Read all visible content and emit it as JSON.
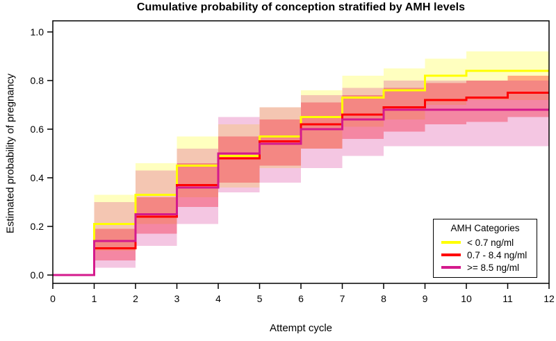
{
  "title": "Cumulative probability of conception stratified by AMH levels",
  "x_axis": {
    "label": "Attempt cycle",
    "ticks": [
      "0",
      "1",
      "2",
      "3",
      "4",
      "5",
      "6",
      "7",
      "8",
      "9",
      "10",
      "11",
      "12"
    ]
  },
  "y_axis": {
    "label": "Estimated probability of pregnancy",
    "ticks": [
      "0.0",
      "0.2",
      "0.4",
      "0.6",
      "0.8",
      "1.0"
    ]
  },
  "legend": {
    "title": "AMH Categories"
  },
  "chart_data": {
    "type": "line",
    "style": "step",
    "title": "Cumulative probability of conception stratified by AMH levels",
    "xlabel": "Attempt cycle",
    "ylabel": "Estimated probability of pregnancy",
    "xlim": [
      0,
      12
    ],
    "ylim": [
      0,
      1.0
    ],
    "grid": false,
    "legend_position": "bottom-right",
    "x": [
      0,
      1,
      2,
      3,
      4,
      5,
      6,
      7,
      8,
      9,
      10,
      11,
      12
    ],
    "series": [
      {
        "name": "< 0.7 ng/ml",
        "color": "#FFFF00",
        "band_color": "rgba(255,255,0,0.25)",
        "values": [
          0,
          0.21,
          0.33,
          0.45,
          0.49,
          0.57,
          0.65,
          0.73,
          0.76,
          0.82,
          0.84,
          0.84,
          0.84
        ],
        "ci_lower": [
          0,
          0.1,
          0.21,
          0.32,
          0.36,
          0.44,
          0.52,
          0.61,
          0.64,
          0.7,
          0.72,
          0.72,
          0.72
        ],
        "ci_upper": [
          0,
          0.33,
          0.46,
          0.57,
          0.62,
          0.69,
          0.76,
          0.82,
          0.85,
          0.89,
          0.92,
          0.92,
          0.92
        ]
      },
      {
        "name": "0.7 - 8.4 ng/ml",
        "color": "#FF0000",
        "band_color": "rgba(255,0,0,0.33)",
        "values": [
          0,
          0.11,
          0.24,
          0.37,
          0.48,
          0.55,
          0.62,
          0.66,
          0.69,
          0.72,
          0.73,
          0.75,
          0.75
        ],
        "ci_lower": [
          0,
          0.06,
          0.17,
          0.28,
          0.38,
          0.45,
          0.52,
          0.56,
          0.59,
          0.62,
          0.63,
          0.65,
          0.65
        ],
        "ci_upper": [
          0,
          0.19,
          0.32,
          0.46,
          0.57,
          0.64,
          0.71,
          0.74,
          0.77,
          0.79,
          0.8,
          0.82,
          0.82
        ]
      },
      {
        "name": ">= 8.5 ng/ml",
        "color": "#D41A8C",
        "band_color": "rgba(212,26,140,0.25)",
        "values": [
          0,
          0.14,
          0.25,
          0.36,
          0.5,
          0.54,
          0.6,
          0.64,
          0.68,
          0.68,
          0.68,
          0.68,
          0.68
        ],
        "ci_lower": [
          0,
          0.03,
          0.12,
          0.21,
          0.34,
          0.38,
          0.44,
          0.49,
          0.53,
          0.53,
          0.53,
          0.53,
          0.53
        ],
        "ci_upper": [
          0,
          0.3,
          0.43,
          0.52,
          0.65,
          0.69,
          0.74,
          0.77,
          0.8,
          0.8,
          0.8,
          0.8,
          0.8
        ]
      }
    ]
  }
}
